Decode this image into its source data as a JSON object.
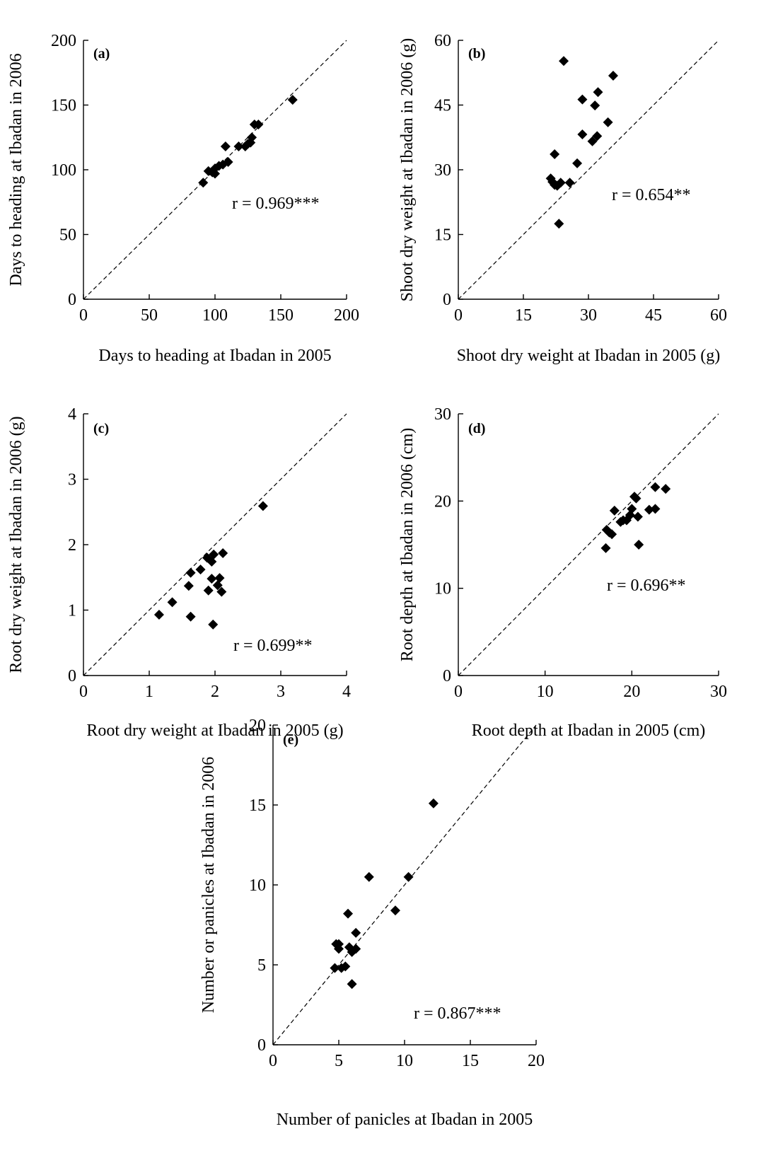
{
  "chart_data": [
    {
      "type": "scatter",
      "panel_label": "(a)",
      "xlabel": "Days to heading at Ibadan in 2005",
      "ylabel": "Days to heading at Ibadan in 2006",
      "xlim": [
        0,
        200
      ],
      "ylim": [
        0,
        200
      ],
      "xticks": [
        0,
        50,
        100,
        150,
        200
      ],
      "yticks": [
        0,
        50,
        100,
        150,
        200
      ],
      "xtick_labels": [
        "0",
        "50",
        "100",
        "150",
        "200"
      ],
      "ytick_labels": [
        "0",
        "50",
        "100",
        "150",
        "200"
      ],
      "annotation": "r = 0.969***",
      "reference_line": "1:1 dashed",
      "points": [
        [
          91,
          90
        ],
        [
          95,
          99
        ],
        [
          98,
          98
        ],
        [
          100,
          101
        ],
        [
          100,
          97
        ],
        [
          103,
          103
        ],
        [
          106,
          104
        ],
        [
          108,
          118
        ],
        [
          110,
          106
        ],
        [
          118,
          118
        ],
        [
          123,
          118
        ],
        [
          125,
          120
        ],
        [
          127,
          121
        ],
        [
          128,
          125
        ],
        [
          130,
          135
        ],
        [
          133,
          135
        ],
        [
          159,
          154
        ]
      ]
    },
    {
      "type": "scatter",
      "panel_label": "(b)",
      "xlabel": "Shoot dry weight at Ibadan in 2005 (g)",
      "ylabel": "Shoot dry weight at Ibadan in 2006 (g)",
      "xlim": [
        0,
        60
      ],
      "ylim": [
        0,
        60
      ],
      "xticks": [
        0,
        15,
        30,
        45,
        60
      ],
      "yticks": [
        0,
        15,
        30,
        45,
        60
      ],
      "xtick_labels": [
        "0",
        "15",
        "30",
        "45",
        "60"
      ],
      "ytick_labels": [
        "0",
        "15",
        "30",
        "45",
        "60"
      ],
      "annotation": "r = 0.654**",
      "reference_line": "1:1 dashed",
      "points": [
        [
          21.3,
          28.0
        ],
        [
          21.7,
          27.2
        ],
        [
          22.2,
          33.6
        ],
        [
          22.2,
          26.5
        ],
        [
          22.8,
          26.3
        ],
        [
          23.2,
          17.5
        ],
        [
          23.6,
          27.0
        ],
        [
          24.3,
          55.2
        ],
        [
          25.7,
          27.0
        ],
        [
          27.4,
          31.5
        ],
        [
          28.6,
          38.2
        ],
        [
          28.6,
          46.3
        ],
        [
          30.9,
          36.6
        ],
        [
          31.5,
          44.9
        ],
        [
          32.0,
          37.8
        ],
        [
          32.2,
          48.0
        ],
        [
          34.5,
          41.0
        ],
        [
          35.7,
          51.8
        ]
      ]
    },
    {
      "type": "scatter",
      "panel_label": "(c)",
      "xlabel": "Root dry weight at Ibadan in 2005 (g)",
      "ylabel": "Root dry weight at Ibadan in 2006 (g)",
      "xlim": [
        0,
        4
      ],
      "ylim": [
        0,
        4
      ],
      "xticks": [
        0,
        1,
        2,
        3,
        4
      ],
      "yticks": [
        0,
        1,
        2,
        3,
        4
      ],
      "xtick_labels": [
        "0",
        "1",
        "2",
        "3",
        "4"
      ],
      "ytick_labels": [
        "0",
        "1",
        "2",
        "3",
        "4"
      ],
      "annotation": "r = 0.699**",
      "reference_line": "1:1 dashed",
      "points": [
        [
          1.15,
          0.93
        ],
        [
          1.35,
          1.12
        ],
        [
          1.6,
          1.37
        ],
        [
          1.63,
          1.57
        ],
        [
          1.63,
          0.9
        ],
        [
          1.78,
          1.62
        ],
        [
          1.88,
          1.8
        ],
        [
          1.9,
          1.3
        ],
        [
          1.95,
          1.74
        ],
        [
          1.95,
          1.48
        ],
        [
          1.97,
          0.78
        ],
        [
          1.98,
          1.85
        ],
        [
          2.04,
          1.38
        ],
        [
          2.07,
          1.49
        ],
        [
          2.1,
          1.28
        ],
        [
          2.12,
          1.87
        ],
        [
          2.73,
          2.59
        ]
      ]
    },
    {
      "type": "scatter",
      "panel_label": "(d)",
      "xlabel": "Root depth at Ibadan in 2005 (cm)",
      "ylabel": "Root depth at Ibadan in 2006 (cm)",
      "xlim": [
        0,
        30
      ],
      "ylim": [
        0,
        30
      ],
      "xticks": [
        0,
        10,
        20,
        30
      ],
      "yticks": [
        0,
        10,
        20,
        30
      ],
      "xtick_labels": [
        "0",
        "10",
        "20",
        "30"
      ],
      "ytick_labels": [
        "0",
        "10",
        "20",
        "30"
      ],
      "annotation": "r = 0.696**",
      "reference_line": "1:1 dashed",
      "points": [
        [
          17.0,
          14.6
        ],
        [
          17.1,
          16.7
        ],
        [
          17.4,
          16.4
        ],
        [
          17.7,
          16.2
        ],
        [
          18.0,
          18.9
        ],
        [
          18.7,
          17.6
        ],
        [
          19.0,
          17.8
        ],
        [
          19.4,
          17.8
        ],
        [
          19.8,
          18.4
        ],
        [
          20.0,
          19.1
        ],
        [
          20.3,
          20.5
        ],
        [
          20.5,
          20.3
        ],
        [
          20.7,
          18.2
        ],
        [
          20.8,
          15.0
        ],
        [
          22.0,
          19.0
        ],
        [
          22.7,
          19.1
        ],
        [
          22.7,
          21.6
        ],
        [
          23.9,
          21.4
        ]
      ]
    },
    {
      "type": "scatter",
      "panel_label": "(e)",
      "xlabel": "Number of panicles at Ibadan in 2005",
      "ylabel": "Number or panicles at Ibadan in 2006",
      "xlim": [
        0,
        20
      ],
      "ylim": [
        0,
        20
      ],
      "xticks": [
        0,
        5,
        10,
        15,
        20
      ],
      "yticks": [
        0,
        5,
        10,
        15,
        20
      ],
      "xtick_labels": [
        "0",
        "5",
        "10",
        "15",
        "20"
      ],
      "ytick_labels": [
        "0",
        "5",
        "10",
        "15",
        "20"
      ],
      "annotation": "r = 0.867***",
      "reference_line": "1:1 dashed",
      "points": [
        [
          4.7,
          4.8
        ],
        [
          4.8,
          6.3
        ],
        [
          5.0,
          6.0
        ],
        [
          5.0,
          6.3
        ],
        [
          5.2,
          4.8
        ],
        [
          5.5,
          4.9
        ],
        [
          5.7,
          8.2
        ],
        [
          5.8,
          6.1
        ],
        [
          6.0,
          5.8
        ],
        [
          6.0,
          3.8
        ],
        [
          6.3,
          6.0
        ],
        [
          6.3,
          7.0
        ],
        [
          7.3,
          10.5
        ],
        [
          9.3,
          8.4
        ],
        [
          10.3,
          10.5
        ],
        [
          12.2,
          15.1
        ]
      ]
    }
  ]
}
